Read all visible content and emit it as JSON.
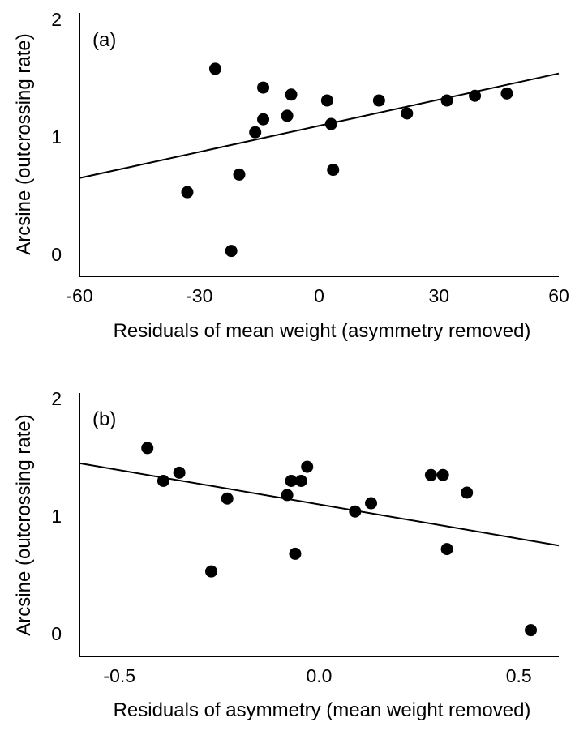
{
  "chart_data": [
    {
      "type": "scatter",
      "panel_label": "(a)",
      "xlabel": "Residuals of mean weight (asymmetry removed)",
      "ylabel": "Arcsine (outcrossing rate)",
      "xlim": [
        -60,
        60
      ],
      "ylim": [
        -0.15,
        2
      ],
      "xticks": [
        -60,
        -30,
        0,
        30,
        60
      ],
      "xtick_labels": [
        "-60",
        "-30",
        "0",
        "30",
        "60"
      ],
      "yticks": [
        0,
        1,
        2
      ],
      "ytick_labels": [
        "0",
        "1",
        "2"
      ],
      "points": [
        {
          "x": -33,
          "y": 0.53
        },
        {
          "x": -26,
          "y": 1.58
        },
        {
          "x": -22,
          "y": 0.03
        },
        {
          "x": -20,
          "y": 0.68
        },
        {
          "x": -16,
          "y": 1.04
        },
        {
          "x": -14,
          "y": 1.42
        },
        {
          "x": -14,
          "y": 1.15
        },
        {
          "x": -8,
          "y": 1.18
        },
        {
          "x": -7,
          "y": 1.36
        },
        {
          "x": 2,
          "y": 1.31
        },
        {
          "x": 3,
          "y": 1.11
        },
        {
          "x": 3.5,
          "y": 0.72
        },
        {
          "x": 15,
          "y": 1.31
        },
        {
          "x": 22,
          "y": 1.2
        },
        {
          "x": 32,
          "y": 1.31
        },
        {
          "x": 39,
          "y": 1.35
        },
        {
          "x": 47,
          "y": 1.37
        }
      ],
      "trendline": [
        {
          "x": -60,
          "y": 0.65
        },
        {
          "x": 60,
          "y": 1.54
        }
      ],
      "grid": false
    },
    {
      "type": "scatter",
      "panel_label": "(b)",
      "xlabel": "Residuals of asymmetry (mean weight removed)",
      "ylabel": "Arcsine (outcrossing rate)",
      "xlim": [
        -0.6,
        0.6
      ],
      "ylim": [
        -0.15,
        2
      ],
      "xticks": [
        -0.5,
        0.0,
        0.5
      ],
      "xtick_labels": [
        "-0.5",
        "0.0",
        "0.5"
      ],
      "yticks": [
        0,
        1,
        2
      ],
      "ytick_labels": [
        "0",
        "1",
        "2"
      ],
      "points": [
        {
          "x": -0.43,
          "y": 1.58
        },
        {
          "x": -0.39,
          "y": 1.3
        },
        {
          "x": -0.35,
          "y": 1.37
        },
        {
          "x": -0.27,
          "y": 0.53
        },
        {
          "x": -0.23,
          "y": 1.15
        },
        {
          "x": -0.08,
          "y": 1.18
        },
        {
          "x": -0.07,
          "y": 1.3
        },
        {
          "x": -0.06,
          "y": 0.68
        },
        {
          "x": -0.045,
          "y": 1.3
        },
        {
          "x": -0.03,
          "y": 1.42
        },
        {
          "x": 0.09,
          "y": 1.04
        },
        {
          "x": 0.13,
          "y": 1.11
        },
        {
          "x": 0.28,
          "y": 1.35
        },
        {
          "x": 0.31,
          "y": 1.35
        },
        {
          "x": 0.32,
          "y": 0.72
        },
        {
          "x": 0.37,
          "y": 1.2
        },
        {
          "x": 0.53,
          "y": 0.03
        }
      ],
      "trendline": [
        {
          "x": -0.6,
          "y": 1.45
        },
        {
          "x": 0.6,
          "y": 0.75
        }
      ],
      "grid": false
    }
  ]
}
